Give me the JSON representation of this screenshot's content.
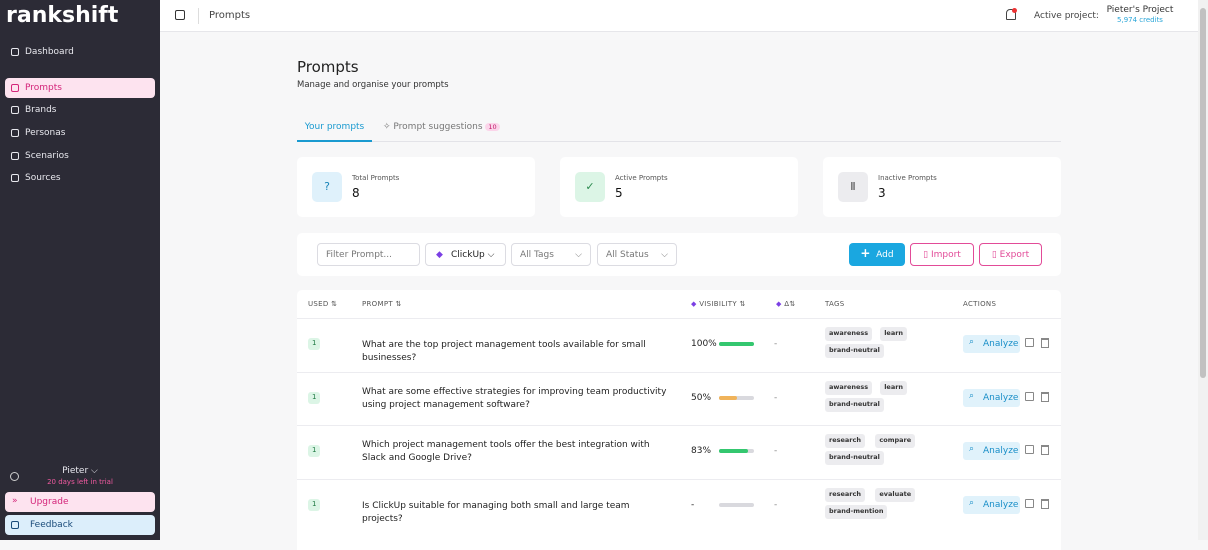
{
  "sidebar": {
    "brand": "rankshift",
    "nav": [
      "Dashboard",
      "Prompts",
      "Brands",
      "Personas",
      "Scenarios",
      "Sources"
    ],
    "user": {
      "name": "Pieter",
      "trial": "20 days left in trial"
    },
    "upgrade": "Upgrade",
    "feedback": "Feedback"
  },
  "topbar": {
    "breadcrumb": "Prompts",
    "active_label": "Active project:",
    "project": "Pieter's Project",
    "credits": "5,974 credits"
  },
  "page": {
    "title": "Prompts",
    "subtitle": "Manage and organise your prompts"
  },
  "tabs": [
    {
      "label": "Your prompts"
    },
    {
      "label": "Prompt suggestions",
      "badge": 10
    }
  ],
  "stats": [
    {
      "label": "Total Prompts",
      "value": 8
    },
    {
      "label": "Active Prompts",
      "value": 5
    },
    {
      "label": "Inactive Prompts",
      "value": 3
    }
  ],
  "filters": {
    "search_placeholder": "Filter Prompt...",
    "brand": "ClickUp",
    "tags": "All Tags",
    "status": "All Status"
  },
  "buttons": {
    "add": "Add",
    "import": "Import",
    "export": "Export"
  },
  "table": {
    "columns": [
      "USED",
      "PROMPT",
      "VISIBILITY",
      "Δ",
      "TAGS",
      "ACTIONS"
    ],
    "rows": [
      {
        "used": 1,
        "prompt": "What are the top project management tools available for small businesses?",
        "visibility": 100,
        "visibility_label": "100%",
        "delta": "-",
        "tags": [
          "awareness",
          "learn",
          "brand-neutral"
        ],
        "action": "Analyze"
      },
      {
        "used": 1,
        "prompt": "What are some effective strategies for improving team productivity using project management software?",
        "visibility": 50,
        "visibility_label": "50%",
        "delta": "-",
        "tags": [
          "awareness",
          "learn",
          "brand-neutral"
        ],
        "action": "Analyze"
      },
      {
        "used": 1,
        "prompt": "Which project management tools offer the best integration with Slack and Google Drive?",
        "visibility": 83,
        "visibility_label": "83%",
        "delta": "-",
        "tags": [
          "research",
          "compare",
          "brand-neutral"
        ],
        "action": "Analyze"
      },
      {
        "used": 1,
        "prompt": "Is ClickUp suitable for managing both small and large team projects?",
        "visibility": null,
        "visibility_label": "-",
        "delta": "-",
        "tags": [
          "research",
          "evaluate",
          "brand-mention"
        ],
        "action": "Analyze"
      }
    ]
  }
}
